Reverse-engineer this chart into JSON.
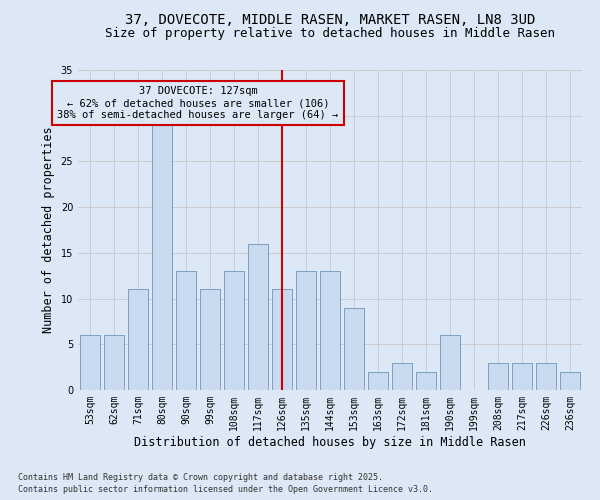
{
  "title": "37, DOVECOTE, MIDDLE RASEN, MARKET RASEN, LN8 3UD",
  "subtitle": "Size of property relative to detached houses in Middle Rasen",
  "xlabel": "Distribution of detached houses by size in Middle Rasen",
  "ylabel": "Number of detached properties",
  "categories": [
    "53sqm",
    "62sqm",
    "71sqm",
    "80sqm",
    "90sqm",
    "99sqm",
    "108sqm",
    "117sqm",
    "126sqm",
    "135sqm",
    "144sqm",
    "153sqm",
    "163sqm",
    "172sqm",
    "181sqm",
    "190sqm",
    "199sqm",
    "208sqm",
    "217sqm",
    "226sqm",
    "236sqm"
  ],
  "values": [
    6,
    6,
    11,
    29,
    13,
    11,
    13,
    16,
    11,
    13,
    13,
    9,
    2,
    3,
    2,
    6,
    0,
    3,
    3,
    3,
    2
  ],
  "bar_color": "#c9d9f0",
  "bar_edge_color": "#7a9fc2",
  "vline_x": 8,
  "vline_color": "#cc0000",
  "annotation_text": "37 DOVECOTE: 127sqm\n← 62% of detached houses are smaller (106)\n38% of semi-detached houses are larger (64) →",
  "annotation_box_color": "#cc0000",
  "ylim": [
    0,
    35
  ],
  "yticks": [
    0,
    5,
    10,
    15,
    20,
    25,
    30,
    35
  ],
  "grid_color": "#cccccc",
  "bg_color": "#dce8f5",
  "footer1": "Contains HM Land Registry data © Crown copyright and database right 2025.",
  "footer2": "Contains public sector information licensed under the Open Government Licence v3.0.",
  "title_fontsize": 10,
  "subtitle_fontsize": 9,
  "axis_fontsize": 8.5,
  "tick_fontsize": 7,
  "annotation_fontsize": 7.5
}
